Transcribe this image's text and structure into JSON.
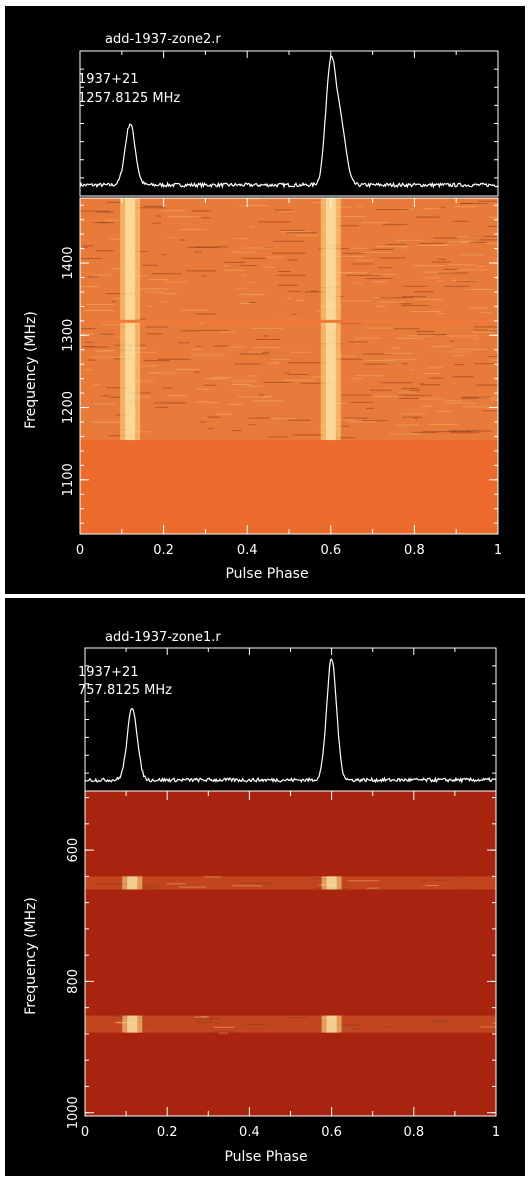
{
  "chart_data": [
    {
      "type": "heatmap",
      "title": "add-1937-zone2.r",
      "source_label": "1937+21",
      "center_frequency_label": "1257.8125 MHz",
      "xlabel": "Pulse Phase",
      "ylabel": "Frequency (MHz)",
      "xlim": [
        0,
        1
      ],
      "ylim": [
        1025,
        1490
      ],
      "y_direction": "ascending-up",
      "x_ticks": [
        "0",
        "0.2",
        "0.4",
        "0.6",
        "0.8",
        "1"
      ],
      "y_ticks": [
        "1100",
        "1200",
        "1300",
        "1400"
      ],
      "profile": {
        "peaks": [
          {
            "phase": 0.12,
            "amplitude": 0.5
          },
          {
            "phase": 0.6,
            "amplitude": 1.0
          },
          {
            "phase": 0.625,
            "amplitude": 0.45
          }
        ]
      },
      "band": {
        "low_mhz": 1155,
        "high_mhz": 1490,
        "rfi_line_mhz": 1320
      },
      "colors": {
        "background": "#ec6a2c",
        "band": "#e87a3a",
        "pulse": "#ffe08a"
      }
    },
    {
      "type": "heatmap",
      "title": "add-1937-zone1.r",
      "source_label": "1937+21",
      "center_frequency_label": "757.8125 MHz",
      "xlabel": "Pulse Phase",
      "ylabel": "Frequency (MHz)",
      "xlim": [
        0,
        1
      ],
      "ylim": [
        1005,
        510
      ],
      "y_direction": "ascending-down",
      "x_ticks": [
        "0",
        "0.2",
        "0.4",
        "0.6",
        "0.8",
        "1"
      ],
      "y_ticks": [
        "600",
        "800",
        "1000"
      ],
      "profile": {
        "peaks": [
          {
            "phase": 0.115,
            "amplitude": 0.6
          },
          {
            "phase": 0.6,
            "amplitude": 1.0
          }
        ]
      },
      "bands": [
        {
          "low_mhz": 640,
          "high_mhz": 660
        },
        {
          "low_mhz": 852,
          "high_mhz": 878
        }
      ],
      "colors": {
        "background": "#a8240e",
        "band": "#c2451f",
        "pulse": "#ffe08a"
      }
    }
  ]
}
